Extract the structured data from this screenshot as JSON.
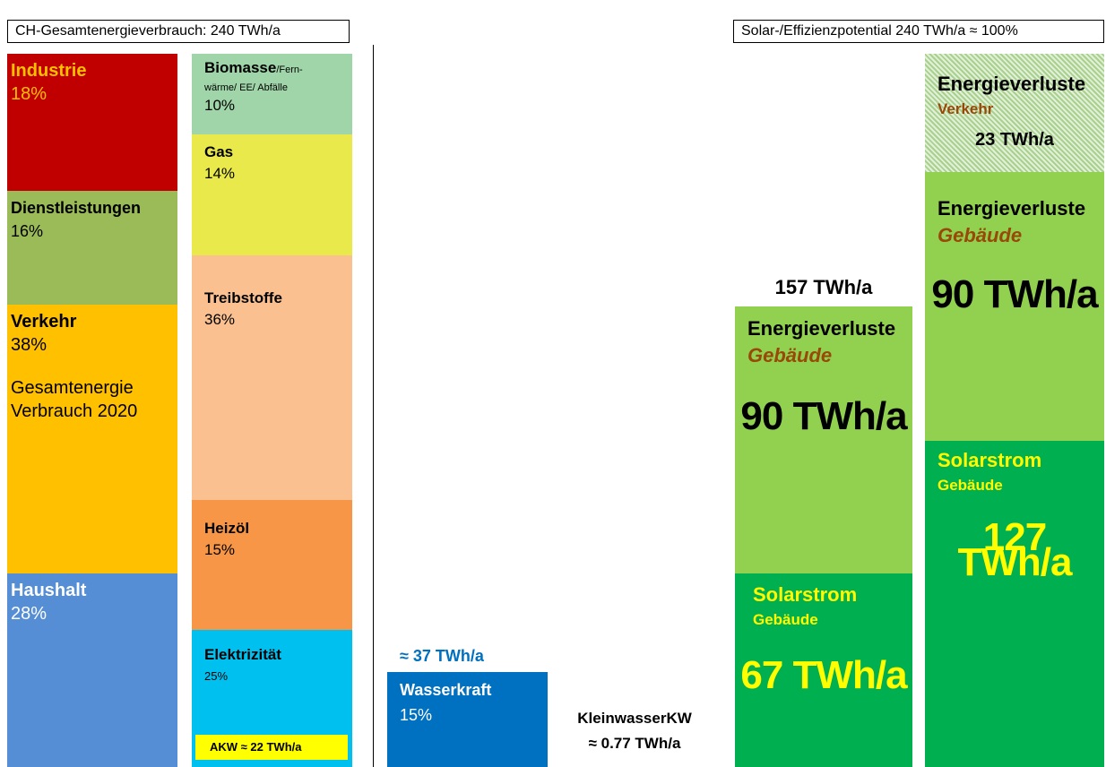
{
  "left_title": "CH-Gesamtenergieverbrauch: 240 TWh/a",
  "right_title": "Solar-/Effizienzpotential 240 TWh/a ≈ 100%",
  "sectors": [
    {
      "name": "Industrie",
      "share": "18%"
    },
    {
      "name": "Dienstleistungen",
      "share": "16%"
    },
    {
      "name": "Verkehr",
      "share": "38%",
      "note": [
        "Gesamtenergie",
        "Verbrauch 2020"
      ]
    },
    {
      "name": "Haushalt",
      "share": "28%"
    }
  ],
  "carriers": [
    {
      "name": "Biomasse",
      "detail": "/Fern-",
      "detail2": "wärme/ EE/ Abfälle",
      "share": "10%"
    },
    {
      "name": "Gas",
      "share": "14%"
    },
    {
      "name": "Treibstoffe",
      "share": "36%"
    },
    {
      "name": "Heizöl",
      "share": "15%"
    },
    {
      "name": "Elektrizität",
      "share": "25%",
      "note": "AKW ≈ 22 TWh/a"
    }
  ],
  "hydro": {
    "total": "≈ 37 TWh/a",
    "name": "Wasserkraft",
    "share": "15%",
    "small_name": "KleinwasserKW",
    "small_value": "≈ 0.77 TWh/a"
  },
  "potential_a": {
    "total": "157 TWh/a",
    "loss_title": "Energieverluste",
    "loss_sub": "Gebäude",
    "loss_value": "90 TWh/a",
    "solar_title": "Solarstrom",
    "solar_sub": "Gebäude",
    "solar_value": "67 TWh/a"
  },
  "potential_b": {
    "traffic_title": "Energieverluste",
    "traffic_sub": "Verkehr",
    "traffic_value": "23 TWh/a",
    "loss_title": "Energieverluste",
    "loss_sub": "Gebäude",
    "loss_value": "90 TWh/a",
    "solar_title": "Solarstrom",
    "solar_sub": "Gebäude",
    "solar_value": "127 TWh/a"
  }
}
